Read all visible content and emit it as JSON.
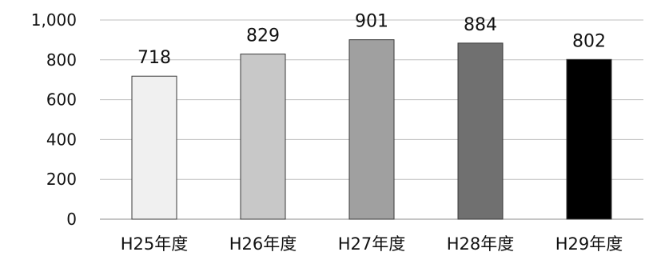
{
  "chart_data": {
    "type": "bar",
    "categories": [
      "H25年度",
      "H26年度",
      "H27年度",
      "H28年度",
      "H29年度"
    ],
    "values": [
      718,
      829,
      901,
      884,
      802
    ],
    "data_labels": [
      "718",
      "829",
      "901",
      "884",
      "802"
    ],
    "bar_colors": [
      "#f0f0f0",
      "#c8c8c8",
      "#a0a0a0",
      "#707070",
      "#000000"
    ],
    "ylim": [
      0,
      1000
    ],
    "yticks": [
      0,
      200,
      400,
      600,
      800,
      1000
    ],
    "ytick_labels": [
      "0",
      "200",
      "400",
      "600",
      "800",
      "1,000"
    ],
    "grid": true,
    "legend": "none"
  }
}
